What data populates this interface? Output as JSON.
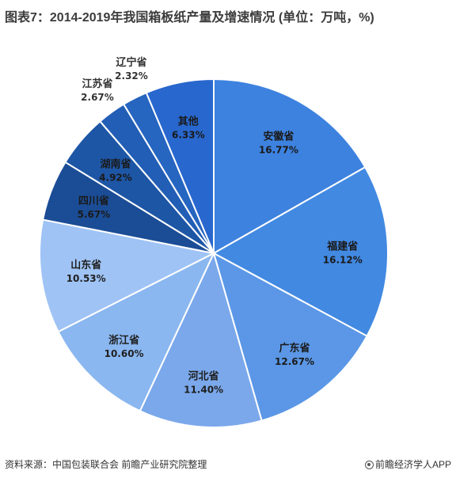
{
  "title": "图表7：2014-2019年我国箱板纸产量及增速情况 (单位：万吨，%)",
  "footer": {
    "source": "资料来源：中国包装联合会 前瞻产业研究院整理",
    "brand": "前瞻经济学人APP"
  },
  "colors": {
    "安徽省": "#3d82df",
    "福建省": "#4289e2",
    "广东省": "#5b97e6",
    "河北省": "#7aa8eb",
    "浙江省": "#8bb7f0",
    "山东省": "#9fc3f5",
    "四川省": "#1b4d96",
    "湖南省": "#1e56a6",
    "江苏省": "#225eb5",
    "辽宁省": "#2665c0",
    "其他": "#2867ce",
    "edge": "#ffffff"
  },
  "chart_data": {
    "type": "pie",
    "slices": [
      {
        "label": "安徽省",
        "value": 16.77,
        "value_label": "16.77%"
      },
      {
        "label": "福建省",
        "value": 16.12,
        "value_label": "16.12%"
      },
      {
        "label": "广东省",
        "value": 12.67,
        "value_label": "12.67%"
      },
      {
        "label": "河北省",
        "value": 11.4,
        "value_label": "11.40%"
      },
      {
        "label": "浙江省",
        "value": 10.6,
        "value_label": "10.60%"
      },
      {
        "label": "山东省",
        "value": 10.53,
        "value_label": "10.53%"
      },
      {
        "label": "四川省",
        "value": 5.67,
        "value_label": "5.67%"
      },
      {
        "label": "湖南省",
        "value": 4.92,
        "value_label": "4.92%"
      },
      {
        "label": "江苏省",
        "value": 2.67,
        "value_label": "2.67%"
      },
      {
        "label": "辽宁省",
        "value": 2.32,
        "value_label": "2.32%"
      },
      {
        "label": "其他",
        "value": 6.33,
        "value_label": "6.33%"
      }
    ],
    "start_angle": "12 o'clock",
    "direction": "clockwise",
    "labels_outside": [
      "江苏省",
      "辽宁省"
    ]
  }
}
